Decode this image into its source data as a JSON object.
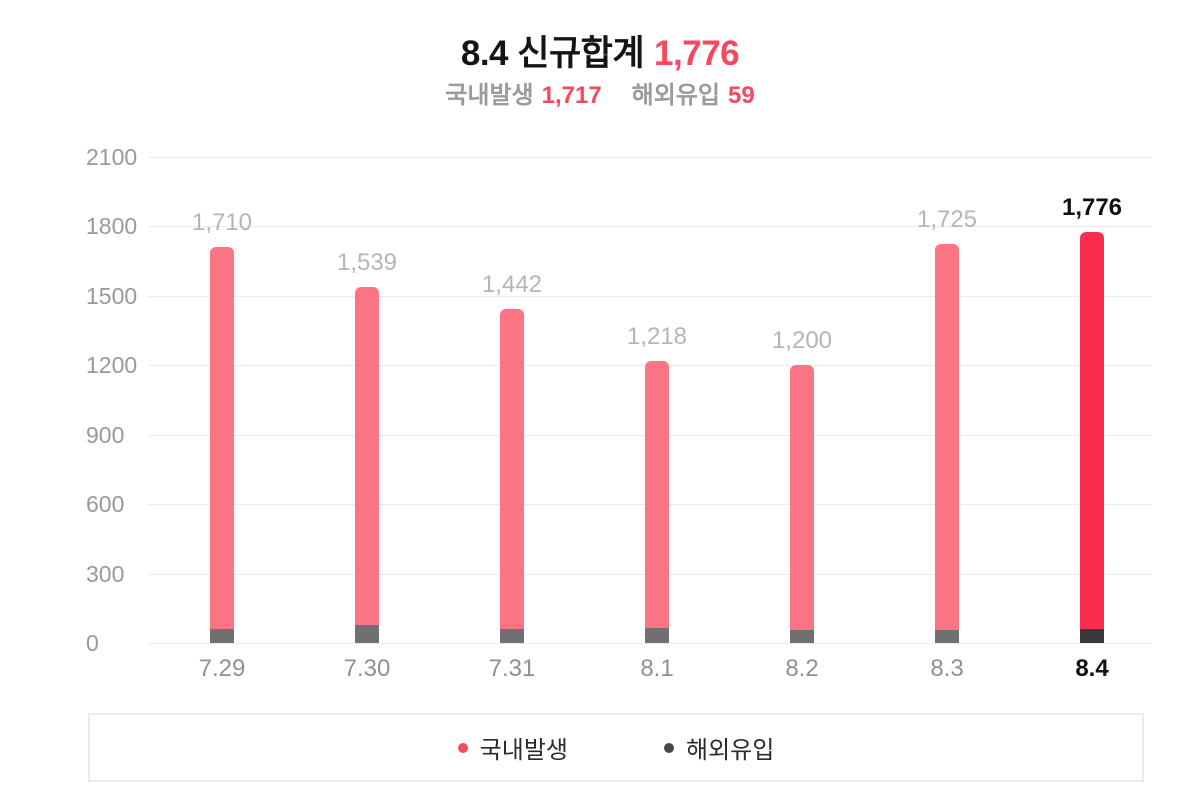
{
  "title": {
    "prefix": "8.4 신규합계",
    "highlight": "1,776"
  },
  "subtitle": {
    "domestic_label": "국내발생",
    "domestic_value": "1,717",
    "imported_label": "해외유입",
    "imported_value": "59"
  },
  "legend": {
    "items": [
      {
        "id": "domestic",
        "label": "국내발생",
        "color": "#fb4a63"
      },
      {
        "id": "imported",
        "label": "해외유입",
        "color": "#48484a"
      }
    ]
  },
  "colors": {
    "accent_red": "#fb2d4f",
    "bar_pink": "#fb7483",
    "bar_gray": "#707070",
    "bar_dark": "#3a3a3c",
    "text_red": "#f8485e",
    "gridline": "#ebebeb"
  },
  "chart_data": {
    "type": "bar",
    "stacked": true,
    "title": "8.4 신규합계 1,776",
    "categories": [
      "7.29",
      "7.30",
      "7.31",
      "8.1",
      "8.2",
      "8.3",
      "8.4"
    ],
    "series": [
      {
        "name": "국내발생",
        "values": [
          1650,
          1461,
          1382,
          1155,
          1145,
          1668,
          1717
        ],
        "color": "#fb7483",
        "highlight_color": "#fb2d4f"
      },
      {
        "name": "해외유입",
        "values": [
          60,
          78,
          60,
          63,
          55,
          57,
          59
        ],
        "color": "#707070",
        "highlight_color": "#3a3a3c"
      }
    ],
    "totals": [
      1710,
      1539,
      1442,
      1218,
      1200,
      1725,
      1776
    ],
    "total_labels": [
      "1,710",
      "1,539",
      "1,442",
      "1,218",
      "1,200",
      "1,725",
      "1,776"
    ],
    "y_ticks": [
      0,
      300,
      600,
      900,
      1200,
      1500,
      1800,
      2100
    ],
    "ylim": [
      0,
      2100
    ],
    "highlight_index": 6,
    "grid": true,
    "legend_position": "bottom"
  }
}
